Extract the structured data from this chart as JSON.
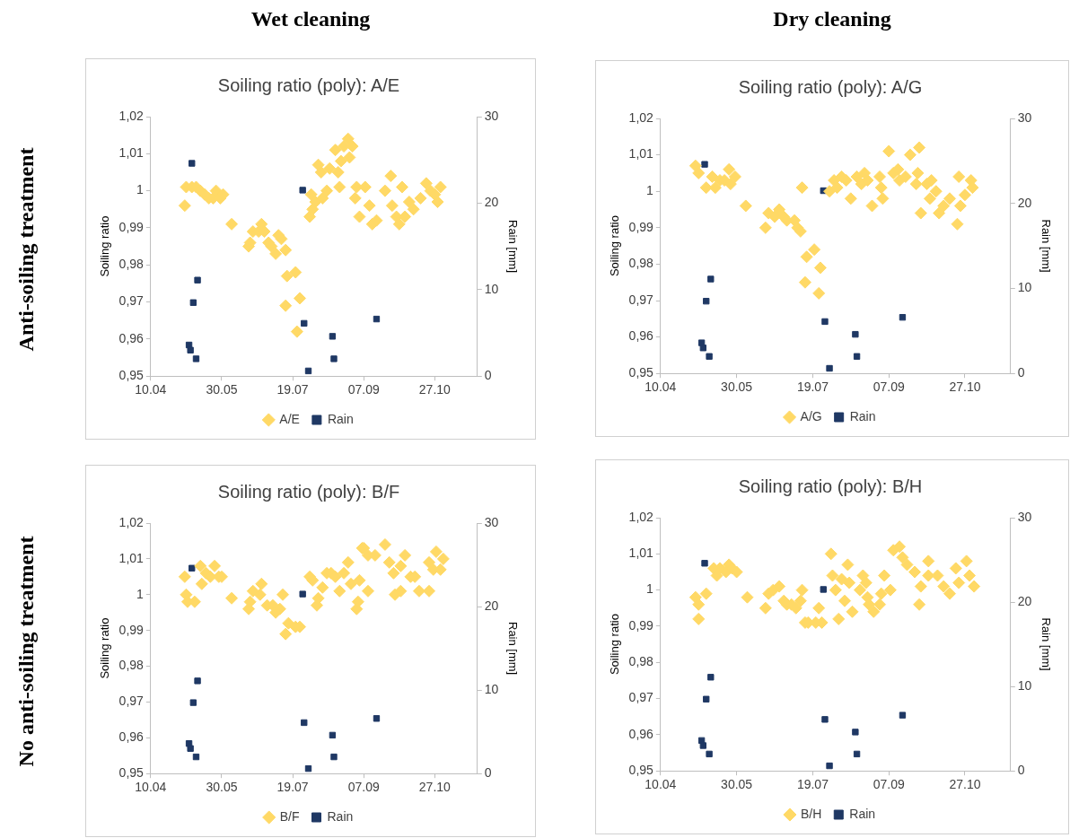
{
  "chart_data": [
    {
      "type": "scatter",
      "title": "Soiling ratio (poly): A/E",
      "ylabel": "Soiling ratio",
      "y2label": "Rain [mm]",
      "annotations": [
        "Wet cleaning",
        "Anti-soiling treatment"
      ],
      "legend": "bottom",
      "grid": false,
      "xlim": [
        "--04-10",
        "--11-26"
      ],
      "xticks": [
        {
          "value": "--04-10",
          "label": "10.04"
        },
        {
          "value": "--05-30",
          "label": "30.05"
        },
        {
          "value": "--07-19",
          "label": "19.07"
        },
        {
          "value": "--09-07",
          "label": "07.09"
        },
        {
          "value": "--10-27",
          "label": "27.10"
        }
      ],
      "ylim": [
        0.95,
        1.02
      ],
      "yticks": [
        {
          "value": 0.95,
          "label": "0,95"
        },
        {
          "value": 0.96,
          "label": "0,96"
        },
        {
          "value": 0.97,
          "label": "0,97"
        },
        {
          "value": 0.98,
          "label": "0,98"
        },
        {
          "value": 0.99,
          "label": "0,99"
        },
        {
          "value": 1,
          "label": "1"
        },
        {
          "value": 1.01,
          "label": "1,01"
        },
        {
          "value": 1.02,
          "label": "1,02"
        }
      ],
      "y2lim": [
        0,
        30
      ],
      "y2ticks": [
        0,
        10,
        20,
        30
      ],
      "series": [
        {
          "name": "A/E",
          "color": "#ffd966",
          "marker": "diamond",
          "x": [
            "--05-05",
            "--05-04",
            "--05-09",
            "--05-12",
            "--05-15",
            "--05-18",
            "--05-21",
            "--05-24",
            "--05-26",
            "--05-29",
            "--05-31",
            "--06-06",
            "--06-18",
            "--06-19",
            "--06-21",
            "--06-25",
            "--06-27",
            "--06-29",
            "--07-02",
            "--07-04",
            "--07-07",
            "--07-09",
            "--07-11",
            "--07-14",
            "--07-15",
            "--07-21",
            "--07-14",
            "--07-24",
            "--07-22",
            "--07-31",
            "--08-02",
            "--08-01",
            "--08-04",
            "--08-06",
            "--08-08",
            "--08-09",
            "--08-12",
            "--08-14",
            "--08-18",
            "--08-20",
            "--08-21",
            "--08-22",
            "--08-24",
            "--08-27",
            "--08-28",
            "--08-30",
            "--09-02",
            "--09-01",
            "--09-04",
            "--09-08",
            "--09-11",
            "--09-13",
            "--09-16",
            "--09-22",
            "--09-26",
            "--09-27",
            "--09-30",
            "--10-02",
            "--10-04",
            "--10-06",
            "--10-09",
            "--10-12",
            "--10-17",
            "--10-21",
            "--10-24",
            "--10-27",
            "--10-29",
            "--10-31"
          ],
          "values": [
            1.001,
            0.996,
            1.001,
            1.001,
            1.0,
            0.999,
            0.998,
            0.998,
            1.0,
            0.998,
            0.999,
            0.991,
            0.985,
            0.986,
            0.989,
            0.989,
            0.991,
            0.989,
            0.986,
            0.985,
            0.983,
            0.988,
            0.987,
            0.984,
            0.977,
            0.978,
            0.969,
            0.971,
            0.962,
            0.993,
            0.995,
            0.999,
            0.997,
            1.007,
            1.005,
            0.998,
            1.0,
            1.006,
            1.011,
            1.005,
            1.001,
            1.008,
            1.012,
            1.014,
            1.009,
            1.012,
            1.001,
            0.998,
            0.993,
            1.001,
            0.996,
            0.991,
            0.992,
            1.0,
            1.004,
            0.996,
            0.993,
            0.991,
            1.001,
            0.993,
            0.997,
            0.995,
            0.998,
            1.002,
            1.0,
            0.999,
            0.997,
            1.001
          ]
        },
        {
          "name": "Rain",
          "color": "#1f3864",
          "marker": "square",
          "axis": "y2",
          "x": [
            "--05-09",
            "--05-07",
            "--05-08",
            "--05-12",
            "--05-13",
            "--05-10",
            "--07-26",
            "--07-27",
            "--07-30",
            "--08-16",
            "--08-17",
            "--09-16"
          ],
          "values": [
            24.6,
            3.6,
            3.0,
            2.0,
            11.1,
            8.5,
            21.5,
            6.1,
            0.6,
            4.6,
            2.0,
            6.6
          ]
        }
      ]
    },
    {
      "type": "scatter",
      "title": "Soiling ratio (poly): A/G",
      "ylabel": "Soiling ratio",
      "y2label": "Rain [mm]",
      "annotations": [
        "Dry cleaning"
      ],
      "legend": "bottom",
      "grid": false,
      "xlim": [
        "--04-10",
        "--11-26"
      ],
      "xticks": [
        {
          "value": "--04-10",
          "label": "10.04"
        },
        {
          "value": "--05-30",
          "label": "30.05"
        },
        {
          "value": "--07-19",
          "label": "19.07"
        },
        {
          "value": "--09-07",
          "label": "07.09"
        },
        {
          "value": "--10-27",
          "label": "27.10"
        }
      ],
      "ylim": [
        0.95,
        1.02
      ],
      "yticks": [
        {
          "value": 0.95,
          "label": "0,95"
        },
        {
          "value": 0.96,
          "label": "0,96"
        },
        {
          "value": 0.97,
          "label": "0,97"
        },
        {
          "value": 0.98,
          "label": "0,98"
        },
        {
          "value": 0.99,
          "label": "0,99"
        },
        {
          "value": 1,
          "label": "1"
        },
        {
          "value": 1.01,
          "label": "1,01"
        },
        {
          "value": 1.02,
          "label": "1,02"
        }
      ],
      "y2lim": [
        0,
        30
      ],
      "y2ticks": [
        0,
        10,
        20,
        30
      ],
      "series": [
        {
          "name": "A/G",
          "color": "#ffd966",
          "marker": "diamond",
          "x": [
            "--05-03",
            "--05-05",
            "--05-10",
            "--05-14",
            "--05-16",
            "--05-19",
            "--05-22",
            "--05-25",
            "--05-26",
            "--05-29",
            "--06-05",
            "--06-18",
            "--06-20",
            "--06-24",
            "--06-27",
            "--06-30",
            "--07-02",
            "--07-07",
            "--07-09",
            "--07-11",
            "--07-12",
            "--07-15",
            "--07-14",
            "--07-20",
            "--07-24",
            "--07-23",
            "--07-30",
            "--08-02",
            "--08-04",
            "--08-07",
            "--08-10",
            "--08-13",
            "--08-17",
            "--08-20",
            "--08-22",
            "--08-24",
            "--08-27",
            "--09-01",
            "--09-02",
            "--09-03",
            "--09-07",
            "--09-10",
            "--09-13",
            "--09-14",
            "--09-18",
            "--09-21",
            "--09-25",
            "--09-26",
            "--09-27",
            "--09-28",
            "--10-02",
            "--10-05",
            "--10-04",
            "--10-08",
            "--10-10",
            "--10-13",
            "--10-17",
            "--10-22",
            "--10-23",
            "--10-24",
            "--10-27",
            "--10-31",
            "--11-01"
          ],
          "values": [
            1.007,
            1.005,
            1.001,
            1.004,
            1.001,
            1.003,
            1.003,
            1.006,
            1.002,
            1.004,
            0.996,
            0.99,
            0.994,
            0.993,
            0.995,
            0.993,
            0.992,
            0.992,
            0.99,
            0.989,
            1.001,
            0.982,
            0.975,
            0.984,
            0.979,
            0.972,
            1.0,
            1.003,
            1.001,
            1.004,
            1.003,
            0.998,
            1.004,
            1.002,
            1.005,
            1.003,
            0.996,
            1.004,
            1.001,
            0.998,
            1.011,
            1.005,
            1.006,
            1.003,
            1.004,
            1.01,
            1.002,
            1.005,
            1.012,
            0.994,
            1.002,
            1.003,
            0.998,
            1.0,
            0.994,
            0.996,
            0.998,
            0.991,
            1.004,
            0.996,
            0.999,
            1.003,
            1.001
          ]
        },
        {
          "name": "Rain",
          "color": "#1f3864",
          "marker": "square",
          "axis": "y2",
          "x": [
            "--05-09",
            "--05-07",
            "--05-08",
            "--05-12",
            "--05-13",
            "--05-10",
            "--07-26",
            "--07-27",
            "--07-30",
            "--08-16",
            "--08-17",
            "--09-16"
          ],
          "values": [
            24.6,
            3.6,
            3.0,
            2.0,
            11.1,
            8.5,
            21.5,
            6.1,
            0.6,
            4.6,
            2.0,
            6.6
          ]
        }
      ]
    },
    {
      "type": "scatter",
      "title": "Soiling ratio (poly): B/F",
      "ylabel": "Soiling ratio",
      "y2label": "Rain [mm]",
      "annotations": [
        "No anti-soiling treatment"
      ],
      "legend": "bottom",
      "grid": false,
      "xlim": [
        "--04-10",
        "--11-26"
      ],
      "xticks": [
        {
          "value": "--04-10",
          "label": "10.04"
        },
        {
          "value": "--05-30",
          "label": "30.05"
        },
        {
          "value": "--07-19",
          "label": "19.07"
        },
        {
          "value": "--09-07",
          "label": "07.09"
        },
        {
          "value": "--10-27",
          "label": "27.10"
        }
      ],
      "ylim": [
        0.95,
        1.02
      ],
      "yticks": [
        {
          "value": 0.95,
          "label": "0,95"
        },
        {
          "value": 0.96,
          "label": "0,96"
        },
        {
          "value": 0.97,
          "label": "0,97"
        },
        {
          "value": 0.98,
          "label": "0,98"
        },
        {
          "value": 0.99,
          "label": "0,99"
        },
        {
          "value": 1,
          "label": "1"
        },
        {
          "value": 1.01,
          "label": "1,01"
        },
        {
          "value": 1.02,
          "label": "1,02"
        }
      ],
      "y2lim": [
        0,
        30
      ],
      "y2ticks": [
        0,
        10,
        20,
        30
      ],
      "series": [
        {
          "name": "B/F",
          "color": "#ffd966",
          "marker": "diamond",
          "x": [
            "--05-04",
            "--05-05",
            "--05-06",
            "--05-11",
            "--05-15",
            "--05-16",
            "--05-19",
            "--05-22",
            "--05-25",
            "--05-28",
            "--05-30",
            "--06-06",
            "--06-18",
            "--06-19",
            "--06-21",
            "--06-27",
            "--06-26",
            "--07-01",
            "--07-05",
            "--07-07",
            "--07-10",
            "--07-12",
            "--07-14",
            "--07-16",
            "--07-21",
            "--07-24",
            "--07-31",
            "--08-02",
            "--08-05",
            "--08-06",
            "--08-09",
            "--08-12",
            "--08-15",
            "--08-18",
            "--08-21",
            "--08-24",
            "--08-27",
            "--08-29",
            "--09-02",
            "--09-03",
            "--09-04",
            "--09-10",
            "--09-06",
            "--09-07",
            "--09-10",
            "--09-15",
            "--09-22",
            "--09-25",
            "--09-28",
            "--09-29",
            "--10-03",
            "--10-06",
            "--10-03",
            "--10-10",
            "--10-13",
            "--10-16",
            "--10-23",
            "--10-23",
            "--10-26",
            "--10-28",
            "--10-31",
            "--11-02"
          ],
          "values": [
            1.005,
            1.0,
            0.998,
            0.998,
            1.008,
            1.003,
            1.006,
            1.005,
            1.008,
            1.005,
            1.005,
            0.999,
            0.996,
            0.998,
            1.001,
            1.003,
            1.0,
            0.997,
            0.997,
            0.995,
            0.996,
            1.0,
            0.989,
            0.992,
            0.991,
            0.991,
            1.005,
            1.004,
            0.997,
            0.999,
            1.002,
            1.006,
            1.006,
            1.005,
            1.001,
            1.006,
            1.009,
            1.003,
            0.996,
            0.998,
            1.004,
            1.001,
            1.013,
            1.013,
            1.011,
            1.011,
            1.014,
            1.009,
            1.006,
            1.0,
            1.008,
            1.011,
            1.001,
            1.005,
            1.005,
            1.001,
            1.001,
            1.009,
            1.007,
            1.012,
            1.007,
            1.01
          ]
        },
        {
          "name": "Rain",
          "color": "#1f3864",
          "marker": "square",
          "axis": "y2",
          "x": [
            "--05-09",
            "--05-07",
            "--05-08",
            "--05-12",
            "--05-13",
            "--05-10",
            "--07-26",
            "--07-27",
            "--07-30",
            "--08-16",
            "--08-17",
            "--09-16"
          ],
          "values": [
            24.6,
            3.6,
            3.0,
            2.0,
            11.1,
            8.5,
            21.5,
            6.1,
            0.6,
            4.6,
            2.0,
            6.6
          ]
        }
      ]
    },
    {
      "type": "scatter",
      "title": "Soiling ratio (poly): B/H",
      "ylabel": "Soiling ratio",
      "y2label": "Rain [mm]",
      "legend": "bottom",
      "grid": false,
      "xlim": [
        "--04-10",
        "--11-26"
      ],
      "xticks": [
        {
          "value": "--04-10",
          "label": "10.04"
        },
        {
          "value": "--05-30",
          "label": "30.05"
        },
        {
          "value": "--07-19",
          "label": "19.07"
        },
        {
          "value": "--09-07",
          "label": "07.09"
        },
        {
          "value": "--10-27",
          "label": "27.10"
        }
      ],
      "ylim": [
        0.95,
        1.02
      ],
      "yticks": [
        {
          "value": 0.95,
          "label": "0,95"
        },
        {
          "value": 0.96,
          "label": "0,96"
        },
        {
          "value": 0.97,
          "label": "0,97"
        },
        {
          "value": 0.98,
          "label": "0,98"
        },
        {
          "value": 0.99,
          "label": "0,99"
        },
        {
          "value": 1,
          "label": "1"
        },
        {
          "value": 1.01,
          "label": "1,01"
        },
        {
          "value": 1.02,
          "label": "1,02"
        }
      ],
      "y2lim": [
        0,
        30
      ],
      "y2ticks": [
        0,
        10,
        20,
        30
      ],
      "series": [
        {
          "name": "B/H",
          "color": "#ffd966",
          "marker": "diamond",
          "x": [
            "--05-03",
            "--05-05",
            "--05-05",
            "--05-10",
            "--05-15",
            "--05-17",
            "--05-19",
            "--05-23",
            "--05-25",
            "--05-27",
            "--05-30",
            "--06-06",
            "--06-18",
            "--06-20",
            "--06-23",
            "--06-27",
            "--06-30",
            "--07-02",
            "--07-05",
            "--07-08",
            "--07-12",
            "--07-11",
            "--07-14",
            "--07-16",
            "--07-21",
            "--07-23",
            "--07-25",
            "--07-31",
            "--08-01",
            "--08-03",
            "--08-05",
            "--08-07",
            "--08-09",
            "--08-11",
            "--08-12",
            "--08-14",
            "--08-19",
            "--08-21",
            "--08-23",
            "--08-24",
            "--08-25",
            "--08-28",
            "--09-01",
            "--09-02",
            "--09-04",
            "--09-08",
            "--09-10",
            "--09-14",
            "--09-16",
            "--09-19",
            "--09-24",
            "--09-27",
            "--09-28",
            "--10-03",
            "--10-03",
            "--10-09",
            "--10-13",
            "--10-17",
            "--10-21",
            "--10-23",
            "--10-28",
            "--10-30",
            "--11-02"
          ],
          "values": [
            0.998,
            0.996,
            0.992,
            0.999,
            1.006,
            1.004,
            1.006,
            1.005,
            1.007,
            1.006,
            1.005,
            0.998,
            0.995,
            0.999,
            1.0,
            1.001,
            0.997,
            0.996,
            0.996,
            0.995,
            1.0,
            0.997,
            0.991,
            0.991,
            0.991,
            0.995,
            0.991,
            1.01,
            1.004,
            1.0,
            0.992,
            1.003,
            0.997,
            1.007,
            1.002,
            0.994,
            1.0,
            1.004,
            1.002,
            0.998,
            0.996,
            0.994,
            0.996,
            0.999,
            1.004,
            1.0,
            1.011,
            1.012,
            1.009,
            1.007,
            1.005,
            0.996,
            1.001,
            1.008,
            1.004,
            1.004,
            1.001,
            0.999,
            1.006,
            1.002,
            1.008,
            1.004,
            1.001
          ]
        },
        {
          "name": "Rain",
          "color": "#1f3864",
          "marker": "square",
          "axis": "y2",
          "x": [
            "--05-09",
            "--05-07",
            "--05-08",
            "--05-12",
            "--05-13",
            "--05-10",
            "--07-26",
            "--07-27",
            "--07-30",
            "--08-16",
            "--08-17",
            "--09-16"
          ],
          "values": [
            24.6,
            3.6,
            3.0,
            2.0,
            11.1,
            8.5,
            21.5,
            6.1,
            0.6,
            4.6,
            2.0,
            6.6
          ]
        }
      ]
    }
  ]
}
